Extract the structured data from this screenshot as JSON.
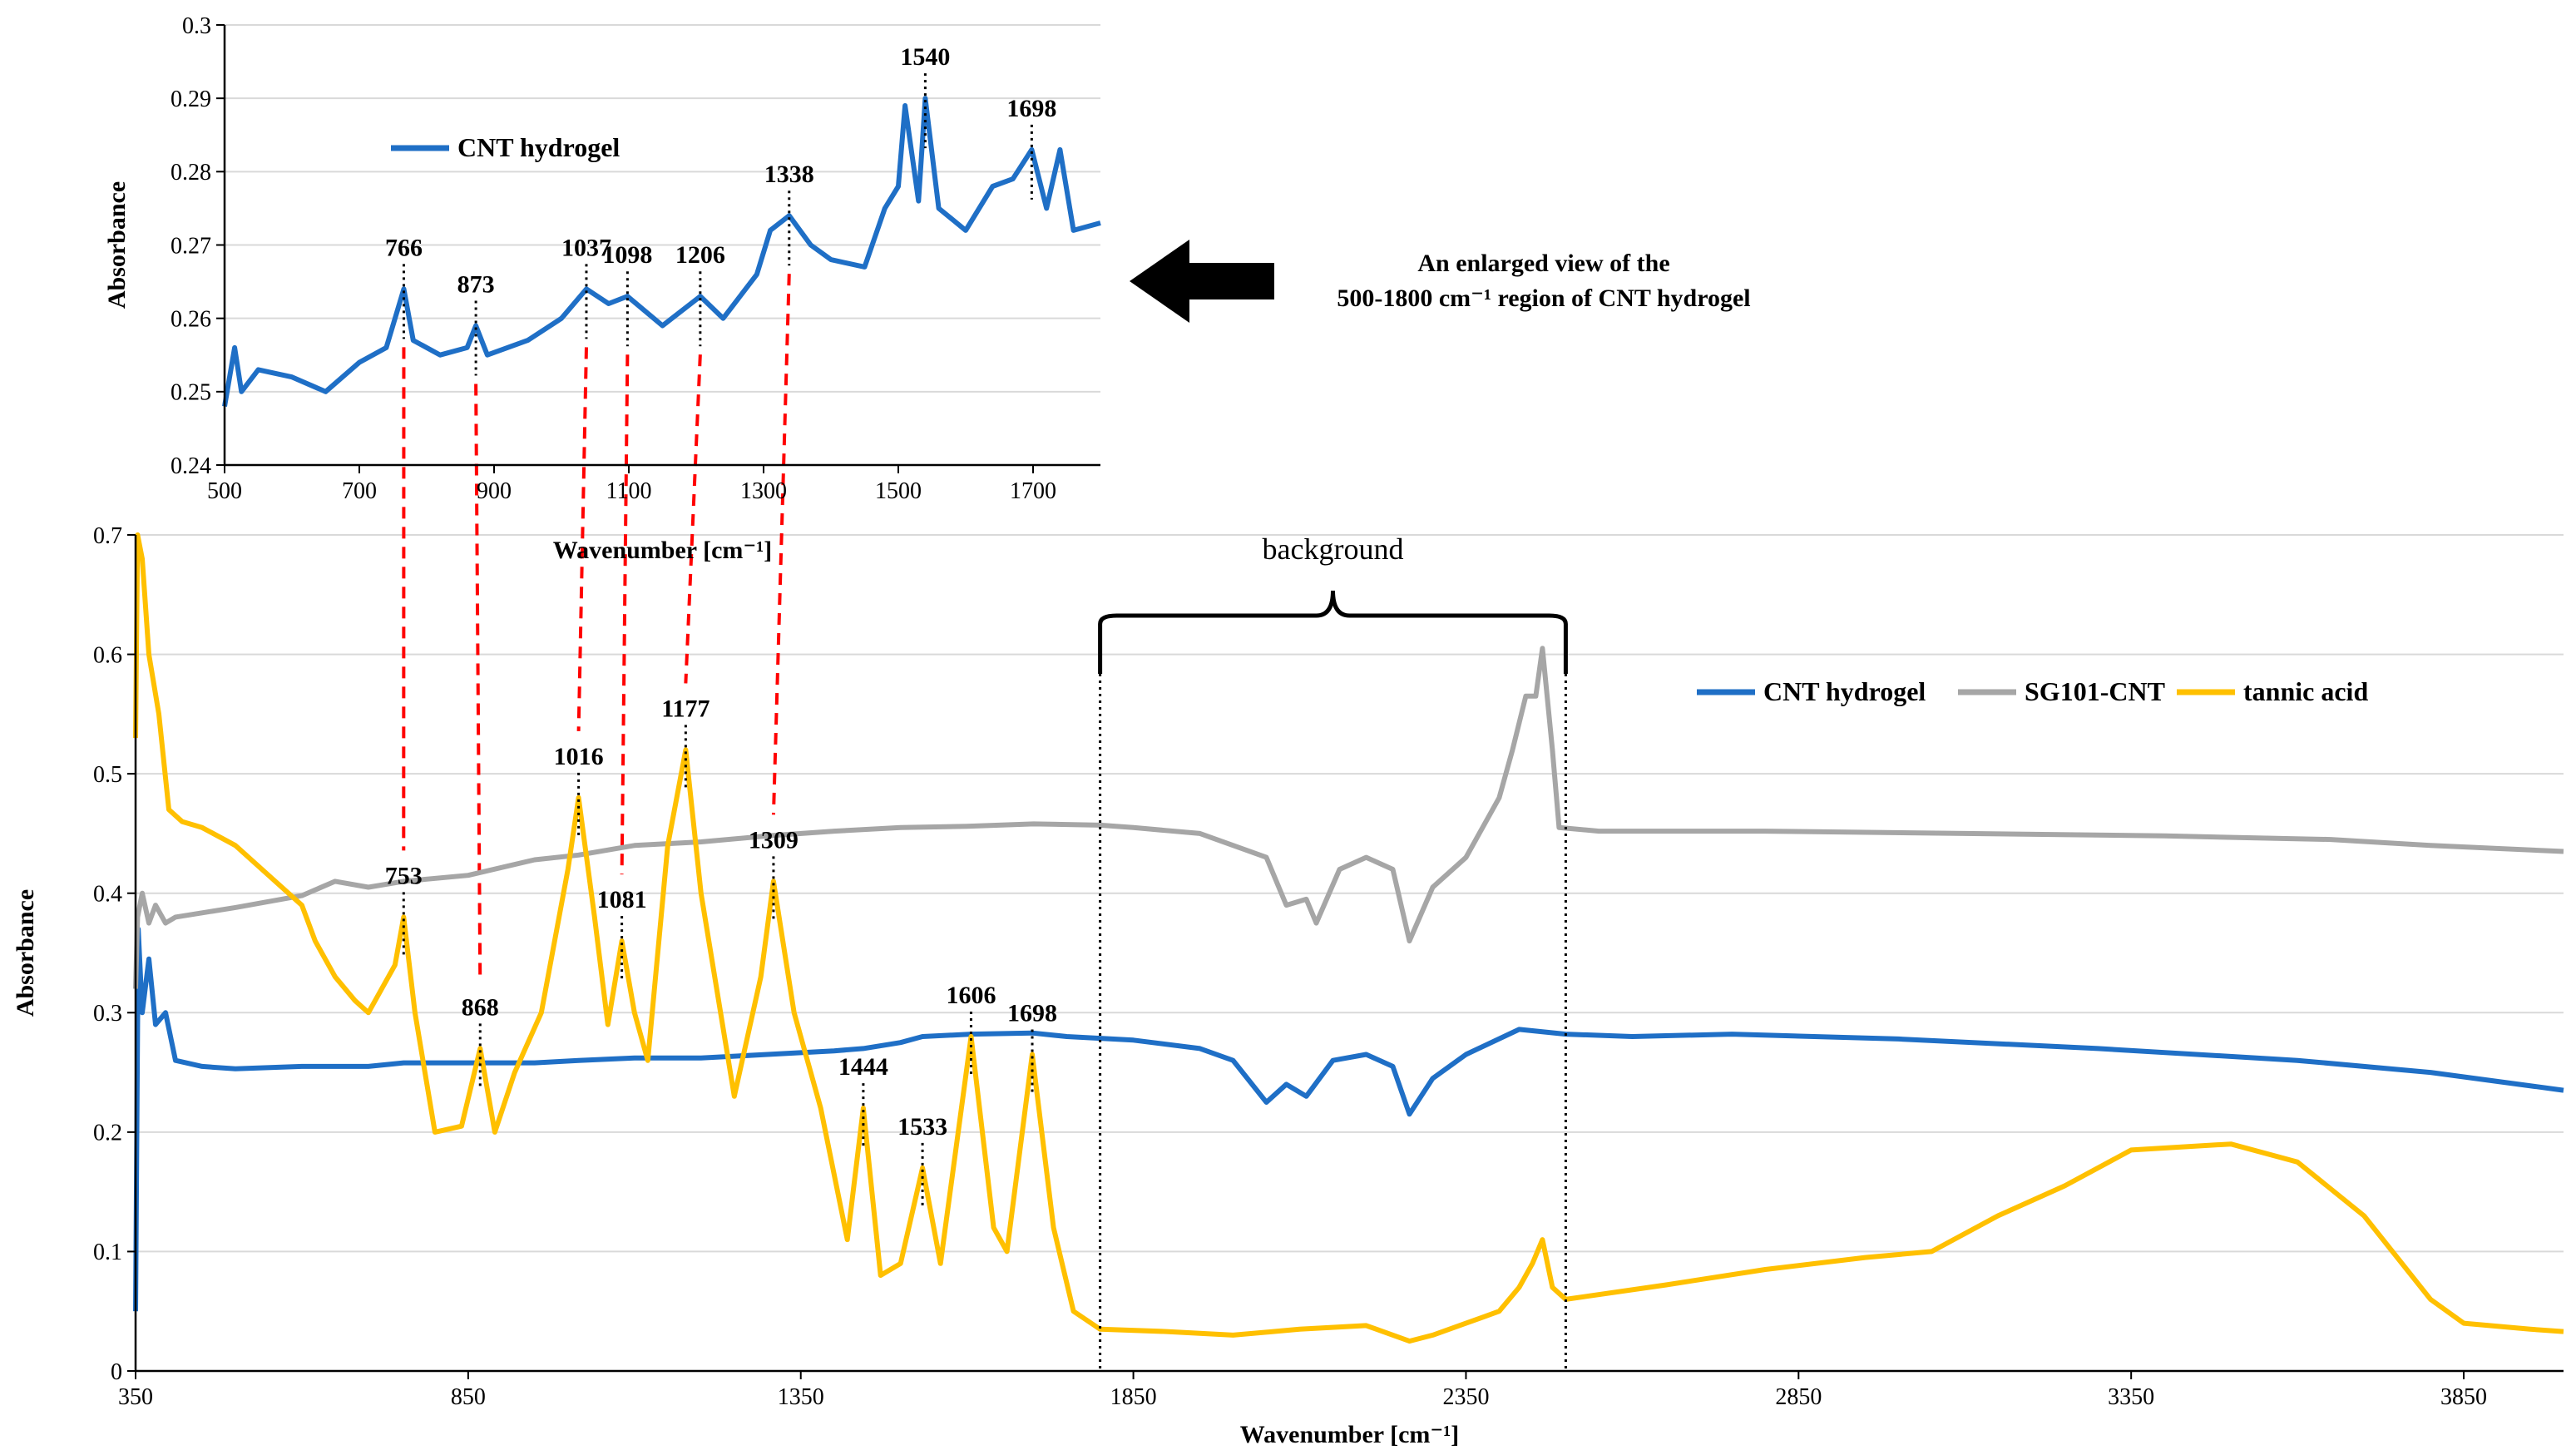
{
  "chart_data": [
    {
      "id": "main",
      "type": "line",
      "title": "",
      "xlabel": "Wavenumber [cm⁻¹]",
      "ylabel": "Absorbance",
      "xlim": [
        350,
        4000
      ],
      "ylim": [
        0,
        0.7
      ],
      "x_ticks": [
        350,
        850,
        1350,
        1850,
        2350,
        2850,
        3350,
        3850
      ],
      "y_ticks": [
        0,
        0.1,
        0.2,
        0.3,
        0.4,
        0.5,
        0.6,
        0.7
      ],
      "y_tick_labels": [
        "0",
        "0.1",
        "0.2",
        "0.3",
        "0.4",
        "0.5",
        "0.6",
        "0.7"
      ],
      "grid": "horizontal",
      "legend_position": "top-right",
      "series": [
        {
          "name": "CNT hydrogel",
          "color": "#1f6fc6",
          "points": [
            [
              350,
              0.05
            ],
            [
              354,
              0.37
            ],
            [
              360,
              0.3
            ],
            [
              370,
              0.345
            ],
            [
              380,
              0.29
            ],
            [
              395,
              0.3
            ],
            [
              410,
              0.26
            ],
            [
              450,
              0.255
            ],
            [
              500,
              0.253
            ],
            [
              600,
              0.255
            ],
            [
              700,
              0.255
            ],
            [
              753,
              0.258
            ],
            [
              800,
              0.258
            ],
            [
              868,
              0.258
            ],
            [
              950,
              0.258
            ],
            [
              1016,
              0.26
            ],
            [
              1100,
              0.262
            ],
            [
              1200,
              0.262
            ],
            [
              1300,
              0.265
            ],
            [
              1400,
              0.268
            ],
            [
              1444,
              0.27
            ],
            [
              1500,
              0.275
            ],
            [
              1533,
              0.28
            ],
            [
              1606,
              0.282
            ],
            [
              1698,
              0.283
            ],
            [
              1750,
              0.28
            ],
            [
              1850,
              0.277
            ],
            [
              1950,
              0.27
            ],
            [
              2000,
              0.26
            ],
            [
              2050,
              0.225
            ],
            [
              2080,
              0.24
            ],
            [
              2110,
              0.23
            ],
            [
              2150,
              0.26
            ],
            [
              2200,
              0.265
            ],
            [
              2240,
              0.255
            ],
            [
              2265,
              0.215
            ],
            [
              2300,
              0.245
            ],
            [
              2350,
              0.265
            ],
            [
              2430,
              0.286
            ],
            [
              2500,
              0.282
            ],
            [
              2600,
              0.28
            ],
            [
              2750,
              0.282
            ],
            [
              3000,
              0.278
            ],
            [
              3300,
              0.27
            ],
            [
              3600,
              0.26
            ],
            [
              3800,
              0.25
            ],
            [
              4000,
              0.235
            ]
          ]
        },
        {
          "name": "SG101-CNT",
          "color": "#a6a6a6",
          "points": [
            [
              350,
              0.32
            ],
            [
              353,
              0.38
            ],
            [
              360,
              0.4
            ],
            [
              370,
              0.375
            ],
            [
              380,
              0.39
            ],
            [
              395,
              0.375
            ],
            [
              410,
              0.38
            ],
            [
              500,
              0.388
            ],
            [
              600,
              0.398
            ],
            [
              650,
              0.41
            ],
            [
              700,
              0.405
            ],
            [
              753,
              0.41
            ],
            [
              850,
              0.415
            ],
            [
              950,
              0.428
            ],
            [
              1016,
              0.432
            ],
            [
              1100,
              0.44
            ],
            [
              1200,
              0.443
            ],
            [
              1300,
              0.448
            ],
            [
              1400,
              0.452
            ],
            [
              1500,
              0.455
            ],
            [
              1600,
              0.456
            ],
            [
              1700,
              0.458
            ],
            [
              1800,
              0.457
            ],
            [
              1850,
              0.455
            ],
            [
              1950,
              0.45
            ],
            [
              2050,
              0.43
            ],
            [
              2080,
              0.39
            ],
            [
              2110,
              0.395
            ],
            [
              2125,
              0.375
            ],
            [
              2160,
              0.42
            ],
            [
              2200,
              0.43
            ],
            [
              2240,
              0.42
            ],
            [
              2265,
              0.36
            ],
            [
              2300,
              0.405
            ],
            [
              2350,
              0.43
            ],
            [
              2400,
              0.48
            ],
            [
              2420,
              0.52
            ],
            [
              2440,
              0.565
            ],
            [
              2455,
              0.565
            ],
            [
              2465,
              0.605
            ],
            [
              2480,
              0.52
            ],
            [
              2490,
              0.455
            ],
            [
              2550,
              0.452
            ],
            [
              2800,
              0.452
            ],
            [
              3100,
              0.45
            ],
            [
              3400,
              0.448
            ],
            [
              3650,
              0.445
            ],
            [
              3800,
              0.44
            ],
            [
              4000,
              0.435
            ]
          ]
        },
        {
          "name": "tannic acid",
          "color": "#ffc000",
          "points": [
            [
              350,
              0.53
            ],
            [
              353,
              0.7
            ],
            [
              360,
              0.68
            ],
            [
              370,
              0.6
            ],
            [
              385,
              0.55
            ],
            [
              400,
              0.47
            ],
            [
              420,
              0.46
            ],
            [
              450,
              0.455
            ],
            [
              500,
              0.44
            ],
            [
              550,
              0.415
            ],
            [
              600,
              0.39
            ],
            [
              620,
              0.36
            ],
            [
              650,
              0.33
            ],
            [
              680,
              0.31
            ],
            [
              700,
              0.3
            ],
            [
              740,
              0.34
            ],
            [
              753,
              0.38
            ],
            [
              770,
              0.3
            ],
            [
              800,
              0.2
            ],
            [
              840,
              0.205
            ],
            [
              868,
              0.27
            ],
            [
              890,
              0.2
            ],
            [
              920,
              0.25
            ],
            [
              960,
              0.3
            ],
            [
              1000,
              0.42
            ],
            [
              1016,
              0.48
            ],
            [
              1040,
              0.38
            ],
            [
              1060,
              0.29
            ],
            [
              1081,
              0.36
            ],
            [
              1100,
              0.3
            ],
            [
              1120,
              0.26
            ],
            [
              1150,
              0.44
            ],
            [
              1177,
              0.52
            ],
            [
              1200,
              0.4
            ],
            [
              1250,
              0.23
            ],
            [
              1290,
              0.33
            ],
            [
              1309,
              0.41
            ],
            [
              1340,
              0.3
            ],
            [
              1380,
              0.22
            ],
            [
              1420,
              0.11
            ],
            [
              1444,
              0.22
            ],
            [
              1470,
              0.08
            ],
            [
              1500,
              0.09
            ],
            [
              1533,
              0.17
            ],
            [
              1560,
              0.09
            ],
            [
              1606,
              0.28
            ],
            [
              1640,
              0.12
            ],
            [
              1660,
              0.1
            ],
            [
              1698,
              0.265
            ],
            [
              1730,
              0.12
            ],
            [
              1760,
              0.05
            ],
            [
              1800,
              0.035
            ],
            [
              1900,
              0.033
            ],
            [
              2000,
              0.03
            ],
            [
              2100,
              0.035
            ],
            [
              2200,
              0.038
            ],
            [
              2265,
              0.025
            ],
            [
              2300,
              0.03
            ],
            [
              2350,
              0.04
            ],
            [
              2400,
              0.05
            ],
            [
              2430,
              0.07
            ],
            [
              2450,
              0.09
            ],
            [
              2465,
              0.11
            ],
            [
              2480,
              0.07
            ],
            [
              2500,
              0.06
            ],
            [
              2650,
              0.072
            ],
            [
              2800,
              0.085
            ],
            [
              2950,
              0.095
            ],
            [
              3050,
              0.1
            ],
            [
              3150,
              0.13
            ],
            [
              3250,
              0.155
            ],
            [
              3350,
              0.185
            ],
            [
              3500,
              0.19
            ],
            [
              3600,
              0.175
            ],
            [
              3700,
              0.13
            ],
            [
              3800,
              0.06
            ],
            [
              3850,
              0.04
            ],
            [
              3950,
              0.035
            ],
            [
              4000,
              0.033
            ]
          ]
        }
      ],
      "peak_labels": [
        {
          "label": "753",
          "x": 753,
          "y": 0.38
        },
        {
          "label": "868",
          "x": 868,
          "y": 0.27
        },
        {
          "label": "1016",
          "x": 1016,
          "y": 0.48
        },
        {
          "label": "1081",
          "x": 1081,
          "y": 0.36
        },
        {
          "label": "1177",
          "x": 1177,
          "y": 0.52
        },
        {
          "label": "1309",
          "x": 1309,
          "y": 0.41
        },
        {
          "label": "1444",
          "x": 1444,
          "y": 0.22
        },
        {
          "label": "1533",
          "x": 1533,
          "y": 0.17
        },
        {
          "label": "1606",
          "x": 1606,
          "y": 0.28
        },
        {
          "label": "1698",
          "x": 1698,
          "y": 0.265
        }
      ],
      "background_annotation": {
        "label": "background",
        "x_from": 1800,
        "x_to": 2500
      }
    },
    {
      "id": "inset",
      "type": "line",
      "title": "",
      "xlabel": "Wavenumber [cm⁻¹]",
      "ylabel": "Absorbance",
      "xlim": [
        500,
        1800
      ],
      "ylim": [
        0.24,
        0.3
      ],
      "x_ticks": [
        500,
        700,
        900,
        1100,
        1300,
        1500,
        1700
      ],
      "y_ticks": [
        0.24,
        0.25,
        0.26,
        0.27,
        0.28,
        0.29,
        0.3
      ],
      "y_tick_labels": [
        "0.24",
        "0.25",
        "0.26",
        "0.27",
        "0.28",
        "0.29",
        "0.3"
      ],
      "grid": "horizontal",
      "legend_position": "top-left",
      "series": [
        {
          "name": "CNT hydrogel",
          "color": "#1f6fc6",
          "points": [
            [
              500,
              0.248
            ],
            [
              515,
              0.256
            ],
            [
              525,
              0.25
            ],
            [
              550,
              0.253
            ],
            [
              600,
              0.252
            ],
            [
              650,
              0.25
            ],
            [
              700,
              0.254
            ],
            [
              740,
              0.256
            ],
            [
              766,
              0.264
            ],
            [
              780,
              0.257
            ],
            [
              820,
              0.255
            ],
            [
              860,
              0.256
            ],
            [
              873,
              0.259
            ],
            [
              890,
              0.255
            ],
            [
              950,
              0.257
            ],
            [
              1000,
              0.26
            ],
            [
              1037,
              0.264
            ],
            [
              1070,
              0.262
            ],
            [
              1098,
              0.263
            ],
            [
              1150,
              0.259
            ],
            [
              1206,
              0.263
            ],
            [
              1240,
              0.26
            ],
            [
              1290,
              0.266
            ],
            [
              1310,
              0.272
            ],
            [
              1338,
              0.274
            ],
            [
              1370,
              0.27
            ],
            [
              1400,
              0.268
            ],
            [
              1450,
              0.267
            ],
            [
              1480,
              0.275
            ],
            [
              1500,
              0.278
            ],
            [
              1510,
              0.289
            ],
            [
              1530,
              0.276
            ],
            [
              1540,
              0.29
            ],
            [
              1560,
              0.275
            ],
            [
              1600,
              0.272
            ],
            [
              1640,
              0.278
            ],
            [
              1670,
              0.279
            ],
            [
              1698,
              0.283
            ],
            [
              1720,
              0.275
            ],
            [
              1740,
              0.283
            ],
            [
              1760,
              0.272
            ],
            [
              1800,
              0.273
            ]
          ]
        }
      ],
      "peak_labels": [
        {
          "label": "766",
          "x": 766,
          "y": 0.264
        },
        {
          "label": "873",
          "x": 873,
          "y": 0.259
        },
        {
          "label": "1037",
          "x": 1037,
          "y": 0.264
        },
        {
          "label": "1098",
          "x": 1098,
          "y": 0.263
        },
        {
          "label": "1206",
          "x": 1206,
          "y": 0.263
        },
        {
          "label": "1338",
          "x": 1338,
          "y": 0.274
        },
        {
          "label": "1540",
          "x": 1540,
          "y": 0.29
        },
        {
          "label": "1698",
          "x": 1698,
          "y": 0.283
        }
      ]
    }
  ],
  "annotation_text": {
    "line1": "An enlarged view of the",
    "line2": "500-1800 cm⁻¹ region of CNT hydrogel"
  },
  "correspondence_pairs": [
    [
      766,
      753
    ],
    [
      873,
      868
    ],
    [
      1037,
      1016
    ],
    [
      1098,
      1081
    ],
    [
      1206,
      1177
    ],
    [
      1338,
      1309
    ]
  ]
}
